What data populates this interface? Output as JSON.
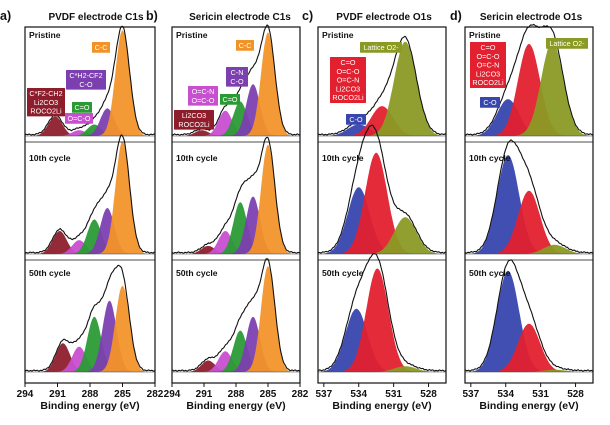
{
  "figure": {
    "x_axis_label": "Binding energy (eV)",
    "row_labels": [
      "Pristine",
      "10th cycle",
      "50th cycle"
    ]
  },
  "colors": {
    "orange": "#f2932a",
    "purple": "#7c3fb0",
    "green": "#2b9a35",
    "magenta": "#c84fd0",
    "darkred": "#8e1d2c",
    "red": "#e2202f",
    "blue": "#3846ae",
    "olive": "#8a9a24"
  },
  "chart_data": [
    {
      "type": "line",
      "panel_label": "a)",
      "title": "PVDF electrode C1s",
      "x_ticks": [
        294,
        291,
        288,
        285,
        282
      ],
      "xlim": [
        294,
        282
      ],
      "x_reversed": true,
      "rows": [
        {
          "label": "Pristine",
          "components": [
            {
              "center": 291.2,
              "height": 0.17,
              "color": "#8e1d2c"
            },
            {
              "center": 289.0,
              "height": 0.05,
              "color": "#c84fd0"
            },
            {
              "center": 287.6,
              "height": 0.1,
              "color": "#2b9a35"
            },
            {
              "center": 286.4,
              "height": 0.24,
              "color": "#7c3fb0"
            },
            {
              "center": 285.0,
              "height": 0.92,
              "color": "#f2932a"
            }
          ],
          "labels": [
            {
              "text": "C-C",
              "bg": "#f2932a",
              "fg": "#ffffff"
            },
            {
              "text": "C*H2-CF2",
              "bg": "#7c3fb0",
              "fg": "#ffffff"
            },
            {
              "text": "C-O",
              "bg": "#7c3fb0",
              "fg": "#ffffff"
            },
            {
              "text": "C*F2-CH2",
              "bg": "#8e1d2c",
              "fg": "#ffffff"
            },
            {
              "text": "Li2CO3",
              "bg": "#8e1d2c",
              "fg": "#ffffff"
            },
            {
              "text": "ROCO2Li",
              "bg": "#8e1d2c",
              "fg": "#ffffff"
            },
            {
              "text": "C=O",
              "bg": "#2b9a35",
              "fg": "#ffffff"
            },
            {
              "text": "O=C-O",
              "bg": "#c84fd0",
              "fg": "#ffffff"
            }
          ]
        },
        {
          "label": "10th cycle",
          "components": [
            {
              "center": 290.8,
              "height": 0.2,
              "color": "#8e1d2c"
            },
            {
              "center": 289.0,
              "height": 0.12,
              "color": "#c84fd0"
            },
            {
              "center": 287.6,
              "height": 0.3,
              "color": "#2b9a35"
            },
            {
              "center": 286.4,
              "height": 0.4,
              "color": "#7c3fb0"
            },
            {
              "center": 285.0,
              "height": 0.98,
              "color": "#f2932a"
            }
          ],
          "labels": []
        },
        {
          "label": "50th cycle",
          "components": [
            {
              "center": 290.5,
              "height": 0.25,
              "color": "#8e1d2c"
            },
            {
              "center": 289.0,
              "height": 0.22,
              "color": "#c84fd0"
            },
            {
              "center": 287.6,
              "height": 0.48,
              "color": "#2b9a35"
            },
            {
              "center": 286.2,
              "height": 0.62,
              "color": "#7c3fb0"
            },
            {
              "center": 285.0,
              "height": 0.75,
              "color": "#f2932a"
            }
          ],
          "labels": []
        }
      ]
    },
    {
      "type": "line",
      "panel_label": "b)",
      "title": "Sericin electrode C1s",
      "x_ticks": [
        294,
        291,
        288,
        285,
        282
      ],
      "xlim": [
        294,
        282
      ],
      "x_reversed": true,
      "rows": [
        {
          "label": "Pristine",
          "components": [
            {
              "center": 291.2,
              "height": 0.05,
              "color": "#8e1d2c"
            },
            {
              "center": 289.0,
              "height": 0.22,
              "color": "#c84fd0"
            },
            {
              "center": 287.6,
              "height": 0.3,
              "color": "#2b9a35"
            },
            {
              "center": 286.4,
              "height": 0.45,
              "color": "#7c3fb0"
            },
            {
              "center": 285.0,
              "height": 0.9,
              "color": "#f2932a"
            }
          ],
          "labels": [
            {
              "text": "C-C",
              "bg": "#f2932a",
              "fg": "#ffffff"
            },
            {
              "text": "C-N",
              "bg": "#7c3fb0",
              "fg": "#ffffff"
            },
            {
              "text": "C-O",
              "bg": "#7c3fb0",
              "fg": "#ffffff"
            },
            {
              "text": "O=C-N",
              "bg": "#c84fd0",
              "fg": "#ffffff"
            },
            {
              "text": "O=C-O",
              "bg": "#c84fd0",
              "fg": "#ffffff"
            },
            {
              "text": "C=O",
              "bg": "#2b9a35",
              "fg": "#ffffff"
            },
            {
              "text": "Li2CO3",
              "bg": "#8e1d2c",
              "fg": "#ffffff"
            },
            {
              "text": "ROCO2Li",
              "bg": "#8e1d2c",
              "fg": "#ffffff"
            }
          ]
        },
        {
          "label": "10th cycle",
          "components": [
            {
              "center": 290.6,
              "height": 0.07,
              "color": "#8e1d2c"
            },
            {
              "center": 289.0,
              "height": 0.2,
              "color": "#c84fd0"
            },
            {
              "center": 287.6,
              "height": 0.45,
              "color": "#2b9a35"
            },
            {
              "center": 286.4,
              "height": 0.5,
              "color": "#7c3fb0"
            },
            {
              "center": 285.0,
              "height": 0.95,
              "color": "#f2932a"
            }
          ],
          "labels": []
        },
        {
          "label": "50th cycle",
          "components": [
            {
              "center": 290.6,
              "height": 0.1,
              "color": "#8e1d2c"
            },
            {
              "center": 289.0,
              "height": 0.18,
              "color": "#c84fd0"
            },
            {
              "center": 287.6,
              "height": 0.36,
              "color": "#2b9a35"
            },
            {
              "center": 286.4,
              "height": 0.48,
              "color": "#7c3fb0"
            },
            {
              "center": 285.0,
              "height": 0.92,
              "color": "#f2932a"
            }
          ],
          "labels": []
        }
      ]
    },
    {
      "type": "line",
      "panel_label": "c)",
      "title": "PVDF electrode O1s",
      "x_ticks": [
        537,
        534,
        531,
        528
      ],
      "xlim": [
        537.5,
        526.5
      ],
      "x_reversed": true,
      "rows": [
        {
          "label": "Pristine",
          "components": [
            {
              "center": 534.0,
              "height": 0.1,
              "color": "#3846ae"
            },
            {
              "center": 532.0,
              "height": 0.26,
              "color": "#e2202f"
            },
            {
              "center": 530.0,
              "height": 0.82,
              "color": "#8a9a24"
            }
          ],
          "labels": [
            {
              "text": "Lattice O2-",
              "bg": "#8a9a24",
              "fg": "#ffffff"
            },
            {
              "text": "C=O",
              "bg": "#e2202f",
              "fg": "#ffffff"
            },
            {
              "text": "O=C-O",
              "bg": "#e2202f",
              "fg": "#ffffff"
            },
            {
              "text": "O=C-N",
              "bg": "#e2202f",
              "fg": "#ffffff"
            },
            {
              "text": "Li2CO3",
              "bg": "#e2202f",
              "fg": "#ffffff"
            },
            {
              "text": "ROCO2Li",
              "bg": "#e2202f",
              "fg": "#ffffff"
            },
            {
              "text": "C-O",
              "bg": "#3846ae",
              "fg": "#ffffff"
            }
          ]
        },
        {
          "label": "10th cycle",
          "components": [
            {
              "center": 534.0,
              "height": 0.58,
              "color": "#3846ae"
            },
            {
              "center": 532.5,
              "height": 0.88,
              "color": "#e2202f"
            },
            {
              "center": 530.0,
              "height": 0.32,
              "color": "#8a9a24"
            }
          ],
          "labels": []
        },
        {
          "label": "50th cycle",
          "components": [
            {
              "center": 534.2,
              "height": 0.55,
              "color": "#3846ae"
            },
            {
              "center": 532.4,
              "height": 0.9,
              "color": "#e2202f"
            },
            {
              "center": 530.0,
              "height": 0.05,
              "color": "#8a9a24"
            }
          ],
          "labels": []
        }
      ]
    },
    {
      "type": "line",
      "panel_label": "d)",
      "title": "Sericin electrode O1s",
      "x_ticks": [
        537,
        534,
        531,
        528
      ],
      "xlim": [
        537.5,
        526.5
      ],
      "x_reversed": true,
      "rows": [
        {
          "label": "Pristine",
          "components": [
            {
              "center": 533.8,
              "height": 0.32,
              "color": "#3846ae"
            },
            {
              "center": 532.0,
              "height": 0.8,
              "color": "#e2202f"
            },
            {
              "center": 530.0,
              "height": 0.82,
              "color": "#8a9a24"
            }
          ],
          "labels": [
            {
              "text": "Lattice O2-",
              "bg": "#8a9a24",
              "fg": "#ffffff"
            },
            {
              "text": "C=O",
              "bg": "#e2202f",
              "fg": "#ffffff"
            },
            {
              "text": "O=C-O",
              "bg": "#e2202f",
              "fg": "#ffffff"
            },
            {
              "text": "O=C-N",
              "bg": "#e2202f",
              "fg": "#ffffff"
            },
            {
              "text": "Li2CO3",
              "bg": "#e2202f",
              "fg": "#ffffff"
            },
            {
              "text": "ROCO2Li",
              "bg": "#e2202f",
              "fg": "#ffffff"
            },
            {
              "text": "C-O",
              "bg": "#3846ae",
              "fg": "#ffffff"
            }
          ]
        },
        {
          "label": "10th cycle",
          "components": [
            {
              "center": 533.8,
              "height": 0.86,
              "color": "#3846ae"
            },
            {
              "center": 532.0,
              "height": 0.55,
              "color": "#e2202f"
            },
            {
              "center": 529.8,
              "height": 0.08,
              "color": "#8a9a24"
            }
          ],
          "labels": []
        },
        {
          "label": "50th cycle",
          "components": [
            {
              "center": 533.8,
              "height": 0.88,
              "color": "#3846ae"
            },
            {
              "center": 532.0,
              "height": 0.42,
              "color": "#e2202f"
            },
            {
              "center": 529.8,
              "height": 0.02,
              "color": "#8a9a24"
            }
          ],
          "labels": []
        }
      ]
    }
  ]
}
